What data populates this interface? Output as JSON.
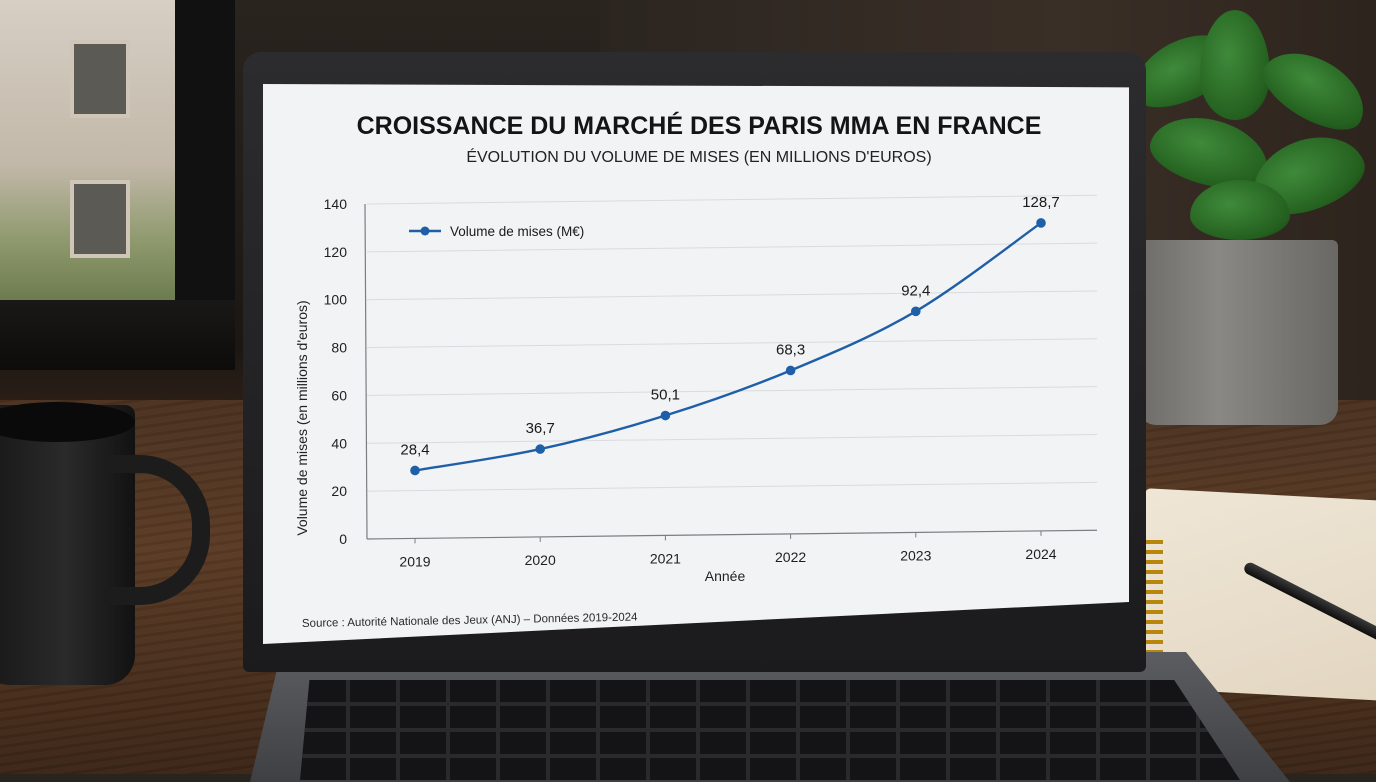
{
  "colors": {
    "series": "#1f5fa8",
    "grid": "#d9dbde",
    "axis": "#7a7d82",
    "screen_bg": "#f2f3f4"
  },
  "chart_data": {
    "type": "line",
    "title": "CROISSANCE DU MARCHÉ DES PARIS MMA EN FRANCE",
    "subtitle": "ÉVOLUTION DU VOLUME DE MISES (EN MILLIONS D'EUROS)",
    "xlabel": "Année",
    "ylabel": "Volume de mises (en millions d'euros)",
    "ylim": [
      0,
      140
    ],
    "yticks": [
      "0",
      "20",
      "40",
      "60",
      "80",
      "100",
      "120",
      "140"
    ],
    "categories": [
      "2019",
      "2020",
      "2021",
      "2022",
      "2023",
      "2024"
    ],
    "series": [
      {
        "name": "Volume de mises (M€)",
        "values": [
          28.4,
          36.7,
          50.1,
          68.3,
          92.4,
          128.7
        ],
        "labels": [
          "28,4",
          "36,7",
          "50,1",
          "68,3",
          "92,4",
          "128,7"
        ]
      }
    ],
    "legend_position": "top-left",
    "grid": true,
    "source": "Source : Autorité Nationale des Jeux (ANJ) – Données 2019-2024"
  }
}
